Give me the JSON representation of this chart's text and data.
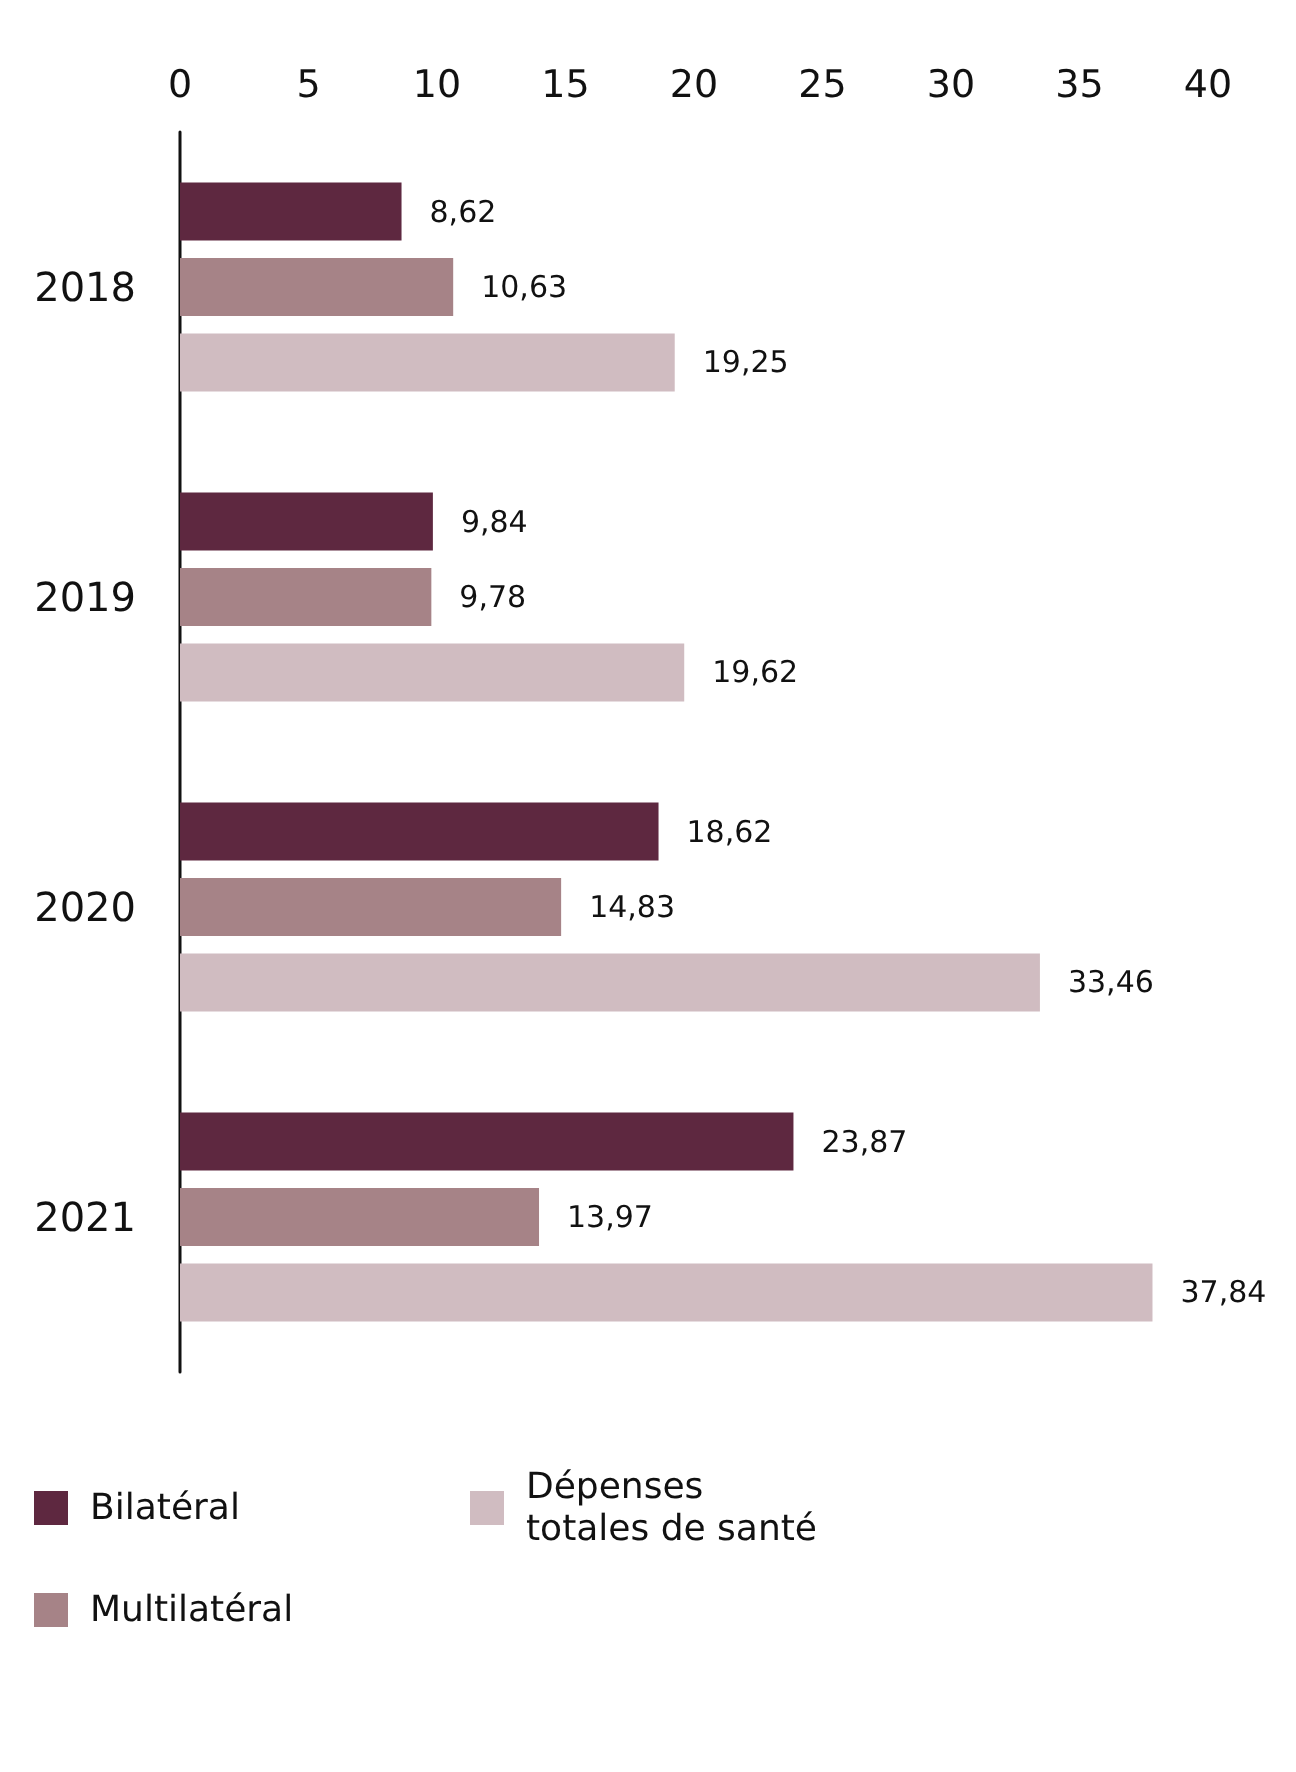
{
  "chart_data": {
    "type": "bar",
    "orientation": "horizontal",
    "categories": [
      "2018",
      "2019",
      "2020",
      "2021"
    ],
    "series": [
      {
        "name": "Bilatéral",
        "color": "#5e2840",
        "values": [
          8.62,
          9.84,
          18.62,
          23.87
        ],
        "value_labels": [
          "8,62",
          "9,84",
          "18,62",
          "23,87"
        ]
      },
      {
        "name": "Multilatéral",
        "color": "#a68387",
        "values": [
          10.63,
          9.78,
          14.83,
          13.97
        ],
        "value_labels": [
          "10,63",
          "9,78",
          "14,83",
          "13,97"
        ]
      },
      {
        "name": "Dépenses totales de santé",
        "color": "#d0bcc1",
        "values": [
          19.25,
          19.62,
          33.46,
          37.84
        ],
        "value_labels": [
          "19,25",
          "19,62",
          "33,46",
          "37,84"
        ]
      }
    ],
    "xlim": [
      0,
      40
    ],
    "xticks": [
      0,
      5,
      10,
      15,
      20,
      25,
      30,
      35,
      40
    ],
    "grid": false,
    "legend": "bottom left"
  }
}
